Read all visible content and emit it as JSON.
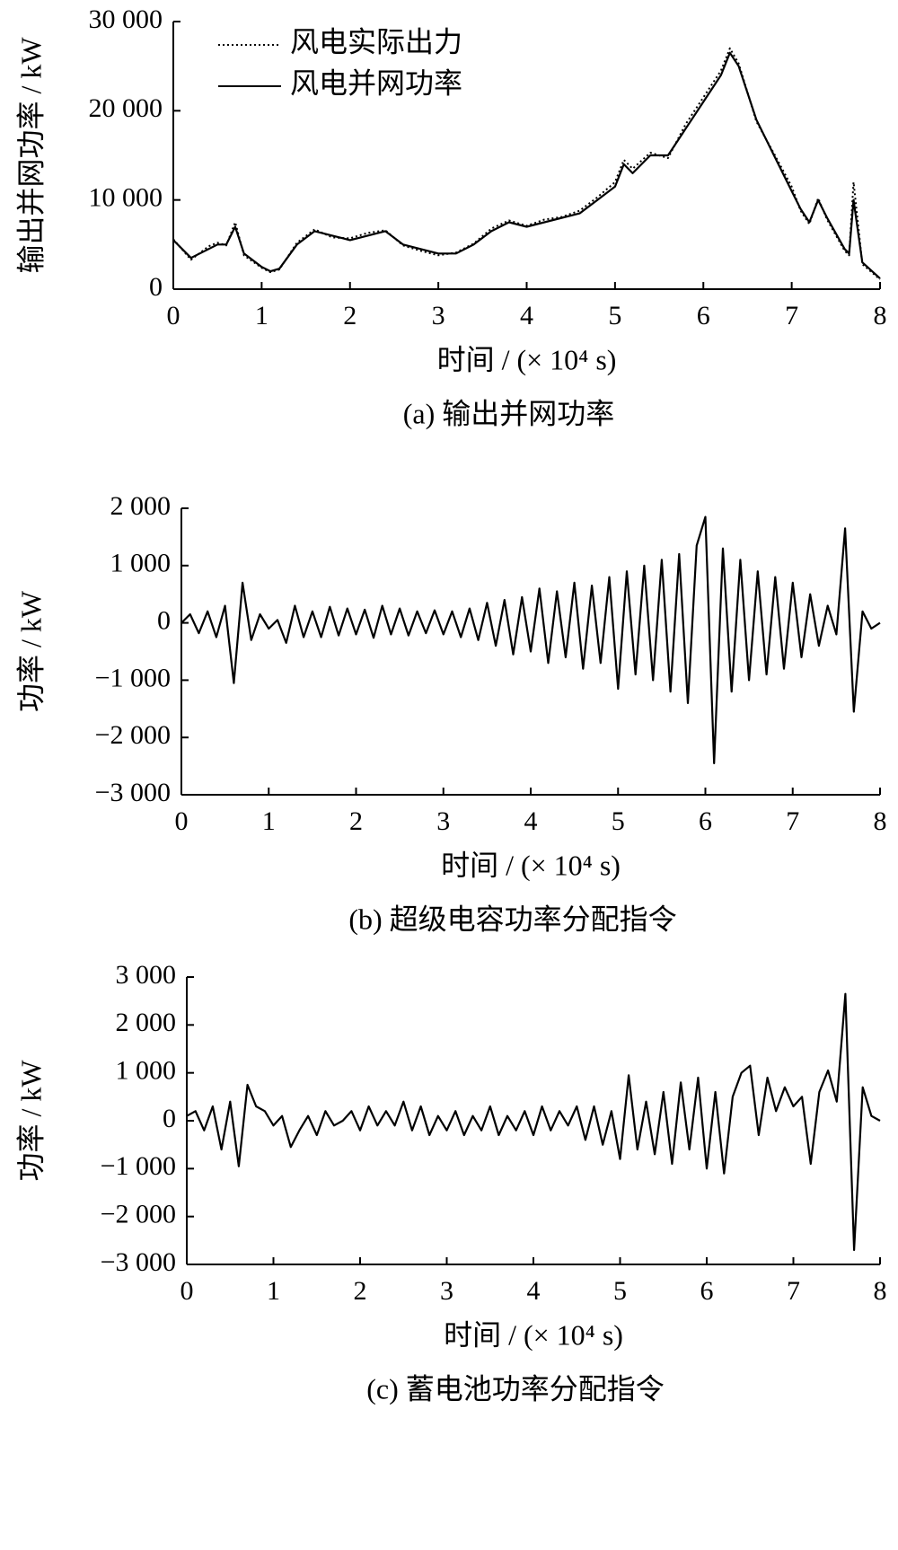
{
  "chart_data": [
    {
      "type": "line",
      "caption": "(a)  输出并网功率",
      "ylabel": "输出并网功率 / kW",
      "xlabel": "时间 / (× 10⁴ s)",
      "x": [
        0,
        0.2,
        0.4,
        0.5,
        0.6,
        0.7,
        0.8,
        1.0,
        1.1,
        1.2,
        1.4,
        1.6,
        1.8,
        2.0,
        2.2,
        2.4,
        2.6,
        2.8,
        3.0,
        3.2,
        3.4,
        3.6,
        3.8,
        4.0,
        4.2,
        4.4,
        4.6,
        4.8,
        5.0,
        5.1,
        5.2,
        5.4,
        5.6,
        5.8,
        6.0,
        6.2,
        6.3,
        6.4,
        6.6,
        6.8,
        7.0,
        7.1,
        7.2,
        7.3,
        7.4,
        7.6,
        7.65,
        7.7,
        7.8,
        8.0
      ],
      "series": [
        {
          "name": "风电实际出力",
          "color": "#000000",
          "dash": "dotted",
          "values": [
            5600,
            3300,
            4800,
            5200,
            4900,
            7500,
            3800,
            2400,
            1900,
            2200,
            5200,
            6700,
            5800,
            5700,
            6300,
            6600,
            4900,
            4300,
            3800,
            4100,
            5100,
            6800,
            7700,
            7100,
            7800,
            8100,
            8800,
            10300,
            12000,
            14500,
            13500,
            15300,
            14700,
            18500,
            21500,
            24500,
            27000,
            25300,
            18800,
            15200,
            11500,
            8800,
            7300,
            10200,
            7800,
            4300,
            3800,
            12000,
            2800,
            1100
          ]
        },
        {
          "name": "风电并网功率",
          "color": "#000000",
          "dash": "solid",
          "values": [
            5500,
            3500,
            4500,
            5000,
            5000,
            7000,
            4000,
            2500,
            2000,
            2300,
            5000,
            6500,
            6000,
            5500,
            6000,
            6500,
            5000,
            4500,
            4000,
            4000,
            5000,
            6500,
            7500,
            7000,
            7500,
            8000,
            8500,
            10000,
            11500,
            14000,
            13000,
            15000,
            15000,
            18000,
            21000,
            24000,
            26500,
            25000,
            19000,
            15000,
            11000,
            9000,
            7500,
            10000,
            8000,
            4500,
            4000,
            10000,
            3000,
            1200
          ]
        }
      ],
      "xlim": [
        0,
        8
      ],
      "xticks": [
        0,
        1,
        2,
        3,
        4,
        5,
        6,
        7,
        8
      ],
      "ylim": [
        0,
        30000
      ],
      "yticks": [
        0,
        {
          "value": 10000,
          "label": "10 000"
        },
        {
          "value": 20000,
          "label": "20 000"
        },
        {
          "value": 30000,
          "label": "30 000"
        }
      ],
      "legend": "upper-left"
    },
    {
      "type": "line",
      "caption": "(b)  超级电容功率分配指令",
      "ylabel": "功率 / kW",
      "xlabel": "时间 / (× 10⁴ s)",
      "x": [
        0,
        0.1,
        0.2,
        0.3,
        0.4,
        0.5,
        0.6,
        0.7,
        0.8,
        0.9,
        1.0,
        1.1,
        1.2,
        1.3,
        1.4,
        1.5,
        1.6,
        1.7,
        1.8,
        1.9,
        2.0,
        2.1,
        2.2,
        2.3,
        2.4,
        2.5,
        2.6,
        2.7,
        2.8,
        2.9,
        3.0,
        3.1,
        3.2,
        3.3,
        3.4,
        3.5,
        3.6,
        3.7,
        3.8,
        3.9,
        4.0,
        4.1,
        4.2,
        4.3,
        4.4,
        4.5,
        4.6,
        4.7,
        4.8,
        4.9,
        5.0,
        5.1,
        5.2,
        5.3,
        5.4,
        5.5,
        5.6,
        5.7,
        5.8,
        5.9,
        6.0,
        6.1,
        6.2,
        6.3,
        6.4,
        6.5,
        6.6,
        6.7,
        6.8,
        6.9,
        7.0,
        7.1,
        7.2,
        7.3,
        7.4,
        7.5,
        7.6,
        7.7,
        7.8,
        7.9,
        8.0
      ],
      "values": [
        0,
        150,
        -180,
        200,
        -250,
        300,
        -1050,
        700,
        -300,
        150,
        -100,
        50,
        -350,
        300,
        -250,
        200,
        -250,
        280,
        -220,
        250,
        -200,
        230,
        -260,
        300,
        -200,
        250,
        -220,
        200,
        -180,
        220,
        -200,
        200,
        -250,
        250,
        -300,
        350,
        -400,
        400,
        -550,
        450,
        -500,
        600,
        -700,
        550,
        -600,
        700,
        -800,
        650,
        -700,
        800,
        -1150,
        900,
        -900,
        1000,
        -1000,
        1100,
        -1200,
        1200,
        -1400,
        1350,
        1850,
        -2450,
        1300,
        -1200,
        1100,
        -1000,
        900,
        -900,
        800,
        -800,
        700,
        -600,
        500,
        -400,
        300,
        -200,
        1650,
        -1550,
        200,
        -100,
        0
      ],
      "color": "#000000",
      "xlim": [
        0,
        8
      ],
      "xticks": [
        0,
        1,
        2,
        3,
        4,
        5,
        6,
        7,
        8
      ],
      "ylim": [
        -3000,
        2000
      ],
      "yticks": [
        {
          "value": -3000,
          "label": "−3 000"
        },
        {
          "value": -2000,
          "label": "−2 000"
        },
        {
          "value": -1000,
          "label": "−1 000"
        },
        0,
        {
          "value": 1000,
          "label": "1 000"
        },
        {
          "value": 2000,
          "label": "2 000"
        }
      ]
    },
    {
      "type": "line",
      "caption": "(c)  蓄电池功率分配指令",
      "ylabel": "功率 / kW",
      "xlabel": "时间 / (× 10⁴ s)",
      "x": [
        0,
        0.1,
        0.2,
        0.3,
        0.4,
        0.5,
        0.6,
        0.7,
        0.8,
        0.9,
        1.0,
        1.1,
        1.2,
        1.3,
        1.4,
        1.5,
        1.6,
        1.7,
        1.8,
        1.9,
        2.0,
        2.1,
        2.2,
        2.3,
        2.4,
        2.5,
        2.6,
        2.7,
        2.8,
        2.9,
        3.0,
        3.1,
        3.2,
        3.3,
        3.4,
        3.5,
        3.6,
        3.7,
        3.8,
        3.9,
        4.0,
        4.1,
        4.2,
        4.3,
        4.4,
        4.5,
        4.6,
        4.7,
        4.8,
        4.9,
        5.0,
        5.1,
        5.2,
        5.3,
        5.4,
        5.5,
        5.6,
        5.7,
        5.8,
        5.9,
        6.0,
        6.1,
        6.2,
        6.3,
        6.4,
        6.5,
        6.6,
        6.7,
        6.8,
        6.9,
        7.0,
        7.1,
        7.2,
        7.3,
        7.4,
        7.5,
        7.6,
        7.7,
        7.8,
        7.9,
        8.0
      ],
      "values": [
        100,
        200,
        -200,
        300,
        -600,
        400,
        -950,
        750,
        300,
        200,
        -100,
        100,
        -550,
        -200,
        100,
        -300,
        200,
        -100,
        0,
        200,
        -200,
        300,
        -100,
        200,
        -100,
        400,
        -200,
        300,
        -300,
        100,
        -200,
        200,
        -300,
        100,
        -200,
        300,
        -300,
        100,
        -200,
        200,
        -300,
        300,
        -200,
        200,
        -100,
        300,
        -400,
        300,
        -500,
        200,
        -800,
        950,
        -600,
        400,
        -700,
        600,
        -900,
        800,
        -600,
        900,
        -1000,
        600,
        -1100,
        500,
        1000,
        1150,
        -300,
        900,
        200,
        700,
        300,
        500,
        -900,
        600,
        1050,
        400,
        2650,
        -2700,
        700,
        100,
        0
      ],
      "color": "#000000",
      "xlim": [
        0,
        8
      ],
      "xticks": [
        0,
        1,
        2,
        3,
        4,
        5,
        6,
        7,
        8
      ],
      "ylim": [
        -3000,
        3000
      ],
      "yticks": [
        {
          "value": -3000,
          "label": "−3 000"
        },
        {
          "value": -2000,
          "label": "−2 000"
        },
        {
          "value": -1000,
          "label": "−1 000"
        },
        0,
        {
          "value": 1000,
          "label": "1 000"
        },
        {
          "value": 2000,
          "label": "2 000"
        },
        {
          "value": 3000,
          "label": "3 000"
        }
      ]
    }
  ]
}
